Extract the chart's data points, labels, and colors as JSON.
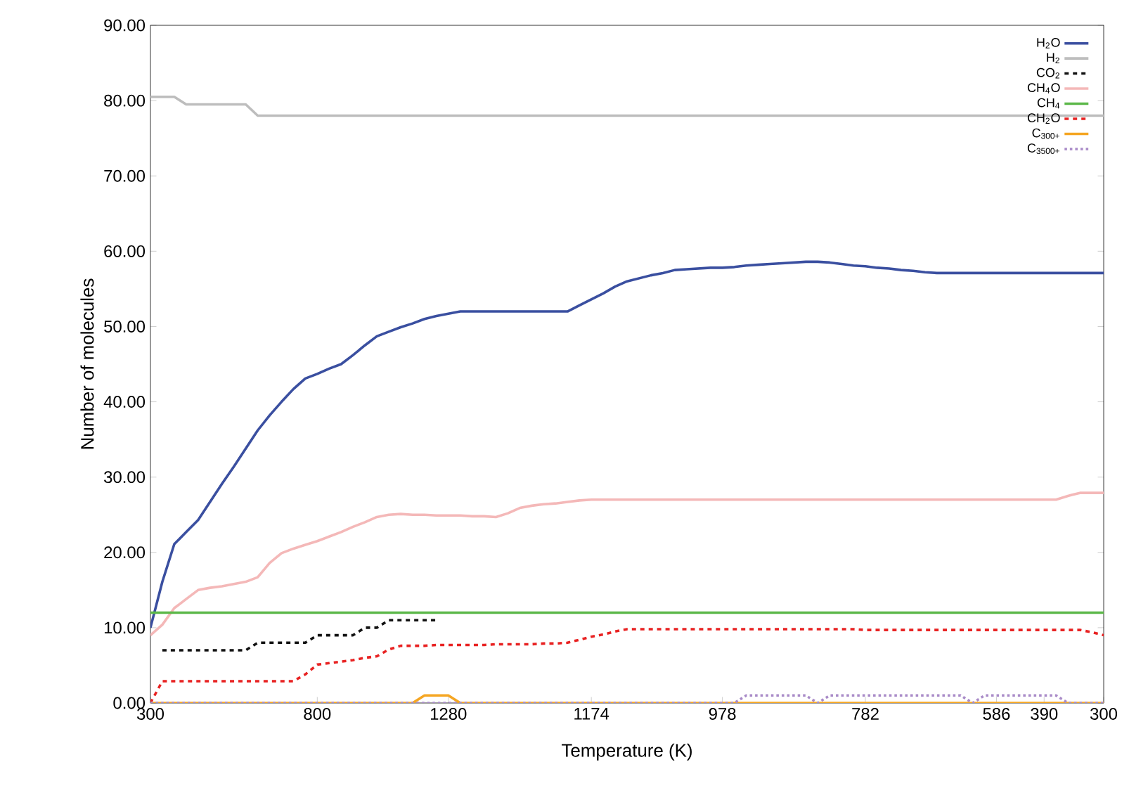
{
  "chart_data": {
    "type": "line",
    "xlabel": "Temperature (K)",
    "ylabel": "Number of molecules",
    "categories": [
      "300",
      null,
      null,
      null,
      null,
      null,
      null,
      null,
      null,
      null,
      null,
      null,
      null,
      null,
      "800",
      null,
      null,
      null,
      null,
      null,
      null,
      null,
      null,
      null,
      null,
      "1280",
      null,
      null,
      null,
      null,
      null,
      null,
      null,
      null,
      null,
      null,
      null,
      "1174",
      null,
      null,
      null,
      null,
      null,
      null,
      null,
      null,
      null,
      null,
      "978",
      null,
      null,
      null,
      null,
      null,
      null,
      null,
      null,
      null,
      null,
      null,
      "782",
      null,
      null,
      null,
      null,
      null,
      null,
      null,
      null,
      null,
      null,
      "586",
      null,
      null,
      null,
      "390",
      null,
      null,
      null,
      null,
      "300"
    ],
    "ylim": [
      0,
      90
    ],
    "yticks": [
      {
        "value": 0,
        "label": "0.00"
      },
      {
        "value": 10,
        "label": "10.00"
      },
      {
        "value": 20,
        "label": "20.00"
      },
      {
        "value": 30,
        "label": "30.00"
      },
      {
        "value": 40,
        "label": "40.00"
      },
      {
        "value": 50,
        "label": "50.00"
      },
      {
        "value": 60,
        "label": "60.00"
      },
      {
        "value": 70,
        "label": "70.00"
      },
      {
        "value": 80,
        "label": "80.00"
      },
      {
        "value": 90,
        "label": "90.00"
      }
    ],
    "legend": "top right",
    "series": [
      {
        "name": "H$_{2}$O",
        "color": "#3a4fa0",
        "line_style": "solid",
        "values": [
          10,
          16.1,
          21.1,
          22.7,
          24.3,
          26.7,
          29.1,
          31.4,
          33.8,
          36.2,
          38.2,
          40.0,
          41.7,
          43.1,
          43.7,
          44.4,
          45,
          46.2,
          47.5,
          48.7,
          49.3,
          49.9,
          50.4,
          51.0,
          51.4,
          51.7,
          52,
          52,
          52,
          52,
          52,
          52,
          52,
          52,
          52,
          52,
          52.8,
          53.6,
          54.4,
          55.3,
          56.0,
          56.4,
          56.8,
          57.1,
          57.5,
          57.6,
          57.7,
          57.8,
          57.8,
          57.9,
          58.1,
          58.2,
          58.3,
          58.4,
          58.5,
          58.6,
          58.6,
          58.5,
          58.3,
          58.1,
          58.0,
          57.8,
          57.7,
          57.5,
          57.4,
          57.2,
          57.1,
          57.1,
          57.1,
          57.1,
          57.1,
          57.1,
          57.1,
          57.1,
          57.1,
          57.1,
          57.1,
          57.1,
          57.1,
          57.1,
          57.1
        ]
      },
      {
        "name": "H$_{2}$",
        "color": "#bdbdbd",
        "line_style": "solid",
        "values": [
          80.5,
          80.5,
          80.5,
          79.5,
          79.5,
          79.5,
          79.5,
          79.5,
          79.5,
          78,
          78,
          78,
          78,
          78,
          78,
          78,
          78,
          78,
          78,
          78,
          78,
          78,
          78,
          78,
          78,
          78,
          78,
          78,
          78,
          78,
          78,
          78,
          78,
          78,
          78,
          78,
          78,
          78,
          78,
          78,
          78,
          78,
          78,
          78,
          78,
          78,
          78,
          78,
          78,
          78,
          78,
          78,
          78,
          78,
          78,
          78,
          78,
          78,
          78,
          78,
          78,
          78,
          78,
          78,
          78,
          78,
          78,
          78,
          78,
          78,
          78,
          78,
          78,
          78,
          78,
          78,
          78,
          78,
          78,
          78,
          78
        ]
      },
      {
        "name": "CO$_{2}$",
        "color": "#111111",
        "line_style": "dashed",
        "values": [
          null,
          7,
          7,
          7,
          7,
          7,
          7,
          7,
          7,
          8,
          8,
          8,
          8,
          8,
          9,
          9,
          9,
          9,
          10,
          10,
          11,
          11,
          11,
          11,
          11,
          null,
          null,
          null,
          null,
          null,
          null,
          null,
          null,
          null,
          null,
          null,
          null,
          null,
          null,
          null,
          null,
          null,
          null,
          null,
          null,
          null,
          null,
          null,
          null,
          null,
          null,
          null,
          null,
          null,
          null,
          null,
          null,
          null,
          null,
          null,
          null,
          null,
          null,
          null,
          null,
          null,
          null,
          null,
          null,
          null,
          null,
          null,
          null,
          null,
          null,
          null,
          null,
          null,
          null,
          null,
          null
        ]
      },
      {
        "name": "CH$_{4}$O",
        "color": "#f4b8b8",
        "line_style": "solid",
        "values": [
          9,
          10.4,
          12.6,
          13.8,
          15,
          15.3,
          15.5,
          15.8,
          16.1,
          16.7,
          18.6,
          19.9,
          20.5,
          21.0,
          21.5,
          22.1,
          22.7,
          23.4,
          24.0,
          24.7,
          25.0,
          25.1,
          25.0,
          25.0,
          24.9,
          24.9,
          24.9,
          24.8,
          24.8,
          24.7,
          25.2,
          25.9,
          26.2,
          26.4,
          26.5,
          26.7,
          26.9,
          27,
          27,
          27,
          27,
          27,
          27,
          27,
          27,
          27,
          27,
          27,
          27,
          27,
          27,
          27,
          27,
          27,
          27,
          27,
          27,
          27,
          27,
          27,
          27,
          27,
          27,
          27,
          27,
          27,
          27,
          27,
          27,
          27,
          27,
          27,
          27,
          27,
          27,
          27,
          27,
          27.5,
          27.9,
          27.9,
          27.9
        ]
      },
      {
        "name": "CH$_{4}$",
        "color": "#5cb84a",
        "line_style": "solid",
        "values": [
          12,
          12,
          12,
          12,
          12,
          12,
          12,
          12,
          12,
          12,
          12,
          12,
          12,
          12,
          12,
          12,
          12,
          12,
          12,
          12,
          12,
          12,
          12,
          12,
          12,
          12,
          12,
          12,
          12,
          12,
          12,
          12,
          12,
          12,
          12,
          12,
          12,
          12,
          12,
          12,
          12,
          12,
          12,
          12,
          12,
          12,
          12,
          12,
          12,
          12,
          12,
          12,
          12,
          12,
          12,
          12,
          12,
          12,
          12,
          12,
          12,
          12,
          12,
          12,
          12,
          12,
          12,
          12,
          12,
          12,
          12,
          12,
          12,
          12,
          12,
          12,
          12,
          12,
          12,
          12,
          12
        ]
      },
      {
        "name": "CH$_{2}$O",
        "color": "#e82222",
        "line_style": "dashed",
        "values": [
          0,
          2.9,
          2.9,
          2.9,
          2.9,
          2.9,
          2.9,
          2.9,
          2.9,
          2.9,
          2.9,
          2.9,
          2.9,
          3.8,
          5.1,
          5.3,
          5.5,
          5.7,
          6.0,
          6.2,
          7.1,
          7.6,
          7.6,
          7.6,
          7.7,
          7.7,
          7.7,
          7.7,
          7.7,
          7.8,
          7.8,
          7.8,
          7.8,
          7.9,
          7.9,
          8.0,
          8.4,
          8.8,
          9.1,
          9.5,
          9.8,
          9.8,
          9.8,
          9.8,
          9.8,
          9.8,
          9.8,
          9.8,
          9.8,
          9.8,
          9.8,
          9.8,
          9.8,
          9.8,
          9.8,
          9.8,
          9.8,
          9.8,
          9.8,
          9.8,
          9.7,
          9.7,
          9.7,
          9.7,
          9.7,
          9.7,
          9.7,
          9.7,
          9.7,
          9.7,
          9.7,
          9.7,
          9.7,
          9.7,
          9.7,
          9.7,
          9.7,
          9.7,
          9.7,
          9.4,
          9.0
        ]
      },
      {
        "name": "C$_{300+}$",
        "color": "#f5a623",
        "line_style": "solid",
        "values": [
          0,
          0,
          0,
          0,
          0,
          0,
          0,
          0,
          0,
          0,
          0,
          0,
          0,
          0,
          0,
          0,
          0,
          0,
          0,
          0,
          0,
          0,
          0,
          1,
          1,
          1,
          0,
          0,
          0,
          0,
          0,
          0,
          0,
          0,
          0,
          0,
          0,
          0,
          0,
          0,
          0,
          0,
          0,
          0,
          0,
          0,
          0,
          0,
          0,
          0,
          0,
          0,
          0,
          0,
          0,
          0,
          0,
          0,
          0,
          0,
          0,
          0,
          0,
          0,
          0,
          0,
          0,
          0,
          0,
          0,
          0,
          0,
          0,
          0,
          0,
          0,
          0,
          0,
          0,
          0,
          0
        ]
      },
      {
        "name": "C$_{3500+}$",
        "color": "#a98bc8",
        "line_style": "dotted",
        "values": [
          0,
          0,
          0,
          0,
          0,
          0,
          0,
          0,
          0,
          0,
          0,
          0,
          0,
          0,
          0,
          0,
          0,
          0,
          0,
          0,
          0,
          0,
          0,
          0,
          0,
          0,
          0,
          0,
          0,
          0,
          0,
          0,
          0,
          0,
          0,
          0,
          0,
          0,
          0,
          0,
          0,
          0,
          0,
          0,
          0,
          0,
          0,
          0,
          0,
          0,
          1,
          1,
          1,
          1,
          1,
          1,
          0,
          1,
          1,
          1,
          1,
          1,
          1,
          1,
          1,
          1,
          1,
          1,
          1,
          0,
          1,
          1,
          1,
          1,
          1,
          1,
          1,
          0,
          0,
          0,
          0
        ]
      }
    ]
  }
}
